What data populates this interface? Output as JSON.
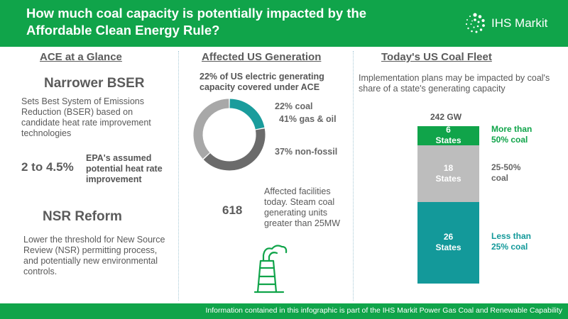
{
  "header": {
    "title": "How much coal capacity is potentially impacted by the Affordable Clean Energy Rule?",
    "logo_text": "IHS Markit",
    "bg_color": "#10a44a"
  },
  "left": {
    "section_title": "ACE at a Glance",
    "bser_heading": "Narrower BSER",
    "bser_text": "Sets Best System of Emissions Reduction (BSER) based on candidate heat rate improvement technologies",
    "heat_rate_value": "2 to 4.5%",
    "heat_rate_label": "EPA's assumed potential  heat rate improvement",
    "nsr_heading": "NSR Reform",
    "nsr_text": "Lower the threshold for New Source Review (NSR) permitting process, and potentially new environmental controls."
  },
  "middle": {
    "section_title": "Affected US Generation",
    "subtitle": "22% of US electric generating capacity covered under ACE",
    "facilities_value": "618",
    "facilities_text": "Affected facilities today. Steam coal generating units greater than 25MW",
    "plant_icon": "power-plant-icon"
  },
  "right": {
    "section_title": "Today's US Coal Fleet",
    "description": "Implementation plans may be impacted by coal's share of a state's generating capacity"
  },
  "footer": {
    "text": "Information contained in this infographic is part of the IHS Markit Power Gas Coal and Renewable Capability"
  },
  "chart_data": [
    {
      "type": "pie",
      "variant": "donut",
      "categories": [
        "coal",
        "gas & oil",
        "non-fossil"
      ],
      "values": [
        22,
        41,
        37
      ],
      "labels": [
        "22% coal",
        "41% gas & oil",
        "37% non-fossil"
      ],
      "colors": [
        "#1a9c9c",
        "#6b6b6b",
        "#a8a8a8"
      ]
    },
    {
      "type": "bar",
      "variant": "stacked",
      "title": "242 GW",
      "categories": [
        "More than 50% coal",
        "25-50% coal",
        "Less than 25% coal"
      ],
      "values": [
        6,
        18,
        26
      ],
      "segment_labels": [
        "6\nStates",
        "18\nStates",
        "26\nStates"
      ],
      "side_labels": [
        "More than\n50% coal",
        "25-50%\ncoal",
        "Less than\n25% coal"
      ],
      "colors": [
        "#10a44a",
        "#bdbdbd",
        "#13999a"
      ],
      "label_colors": [
        "#10a44a",
        "#666666",
        "#13999a"
      ]
    }
  ]
}
